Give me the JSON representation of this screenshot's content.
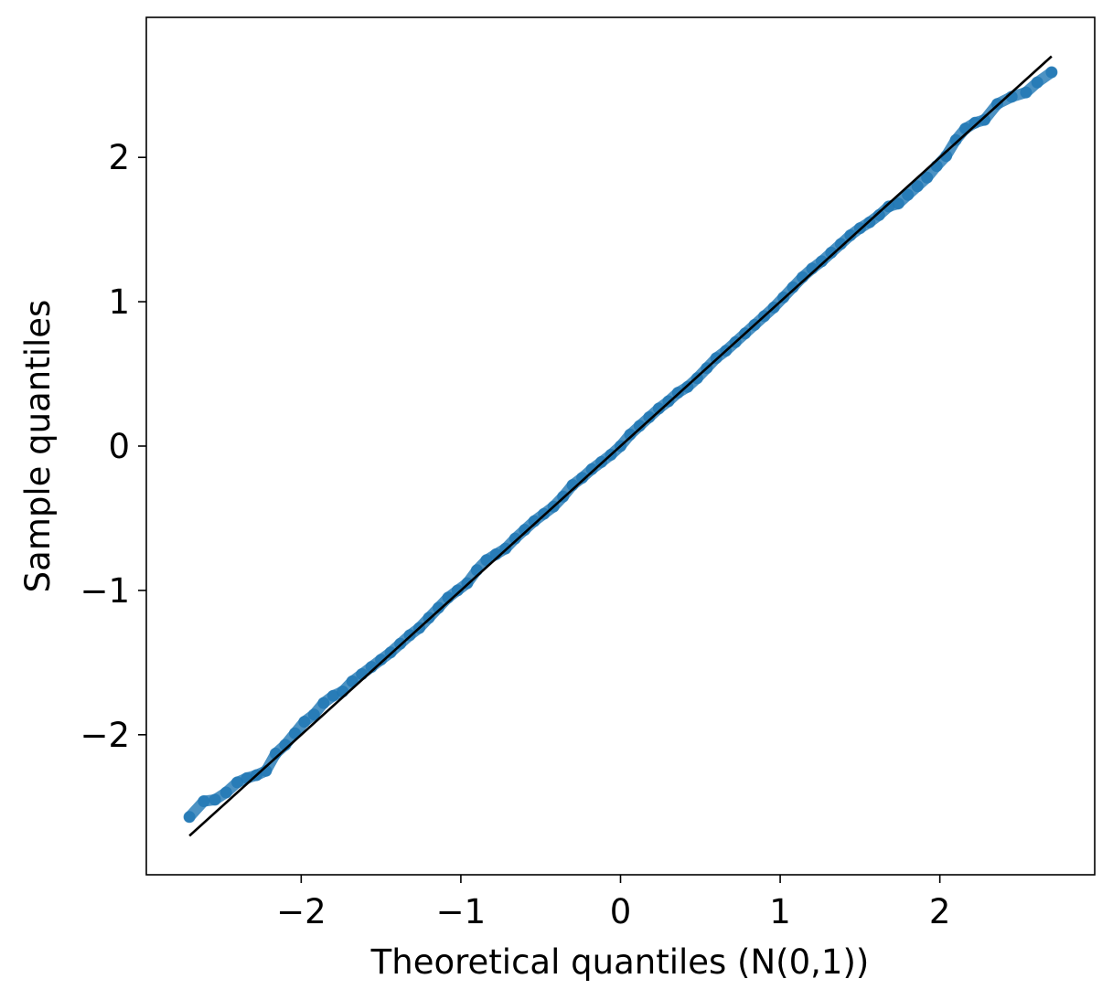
{
  "chart_data": {
    "type": "scatter",
    "title": "",
    "xlabel": "Theoretical quantiles (N(0,1))",
    "ylabel": "Sample quantiles",
    "xlim": [
      -2.97,
      2.97
    ],
    "ylim": [
      -2.97,
      2.97
    ],
    "x_ticks": [
      -2,
      -1,
      0,
      1,
      2
    ],
    "x_tick_labels": [
      "−2",
      "−1",
      "0",
      "1",
      "2"
    ],
    "y_ticks": [
      -2,
      -1,
      0,
      1,
      2
    ],
    "y_tick_labels": [
      "−2",
      "−1",
      "0",
      "1",
      "2"
    ],
    "grid": false,
    "legend": "none",
    "colors": {
      "points": "#1f77b4",
      "reference_line": "#000000"
    },
    "reference_line": {
      "x": [
        -2.7,
        2.7
      ],
      "y": [
        -2.7,
        2.7
      ]
    },
    "series": [
      {
        "x": [
          -2.7,
          -2.61,
          -2.54,
          -2.47,
          -2.4,
          -2.34,
          -2.28,
          -2.22,
          -2.16,
          -2.1,
          -2.04,
          -1.98,
          -1.92,
          -1.86,
          -1.8,
          -1.74,
          -1.68,
          -1.62,
          -1.56,
          -1.5,
          -1.44,
          -1.38,
          -1.32,
          -1.26,
          -1.2,
          -1.14,
          -1.08,
          -1.02,
          -0.96,
          -0.9,
          -0.84,
          -0.78,
          -0.72,
          -0.66,
          -0.6,
          -0.54,
          -0.48,
          -0.42,
          -0.36,
          -0.3,
          -0.24,
          -0.18,
          -0.12,
          -0.06,
          0.0,
          0.06,
          0.12,
          0.18,
          0.24,
          0.3,
          0.36,
          0.42,
          0.48,
          0.54,
          0.6,
          0.66,
          0.72,
          0.78,
          0.84,
          0.9,
          0.96,
          1.02,
          1.08,
          1.14,
          1.2,
          1.26,
          1.32,
          1.38,
          1.44,
          1.5,
          1.56,
          1.62,
          1.68,
          1.74,
          1.8,
          1.86,
          1.92,
          1.98,
          2.04,
          2.1,
          2.16,
          2.22,
          2.28,
          2.36,
          2.45,
          2.54,
          2.61,
          2.7
        ],
        "y": [
          -2.57,
          -2.46,
          -2.45,
          -2.4,
          -2.33,
          -2.3,
          -2.28,
          -2.25,
          -2.13,
          -2.07,
          -1.99,
          -1.91,
          -1.86,
          -1.78,
          -1.73,
          -1.7,
          -1.63,
          -1.58,
          -1.53,
          -1.48,
          -1.43,
          -1.37,
          -1.31,
          -1.26,
          -1.19,
          -1.12,
          -1.05,
          -1.0,
          -0.95,
          -0.86,
          -0.79,
          -0.75,
          -0.71,
          -0.64,
          -0.58,
          -0.52,
          -0.47,
          -0.42,
          -0.35,
          -0.27,
          -0.22,
          -0.16,
          -0.11,
          -0.06,
          0.0,
          0.08,
          0.14,
          0.2,
          0.26,
          0.31,
          0.37,
          0.41,
          0.47,
          0.54,
          0.61,
          0.66,
          0.72,
          0.78,
          0.84,
          0.9,
          0.96,
          1.03,
          1.1,
          1.17,
          1.23,
          1.28,
          1.34,
          1.4,
          1.46,
          1.51,
          1.55,
          1.6,
          1.66,
          1.68,
          1.74,
          1.8,
          1.86,
          1.94,
          2.01,
          2.12,
          2.2,
          2.24,
          2.26,
          2.37,
          2.42,
          2.45,
          2.52,
          2.59
        ]
      }
    ]
  }
}
